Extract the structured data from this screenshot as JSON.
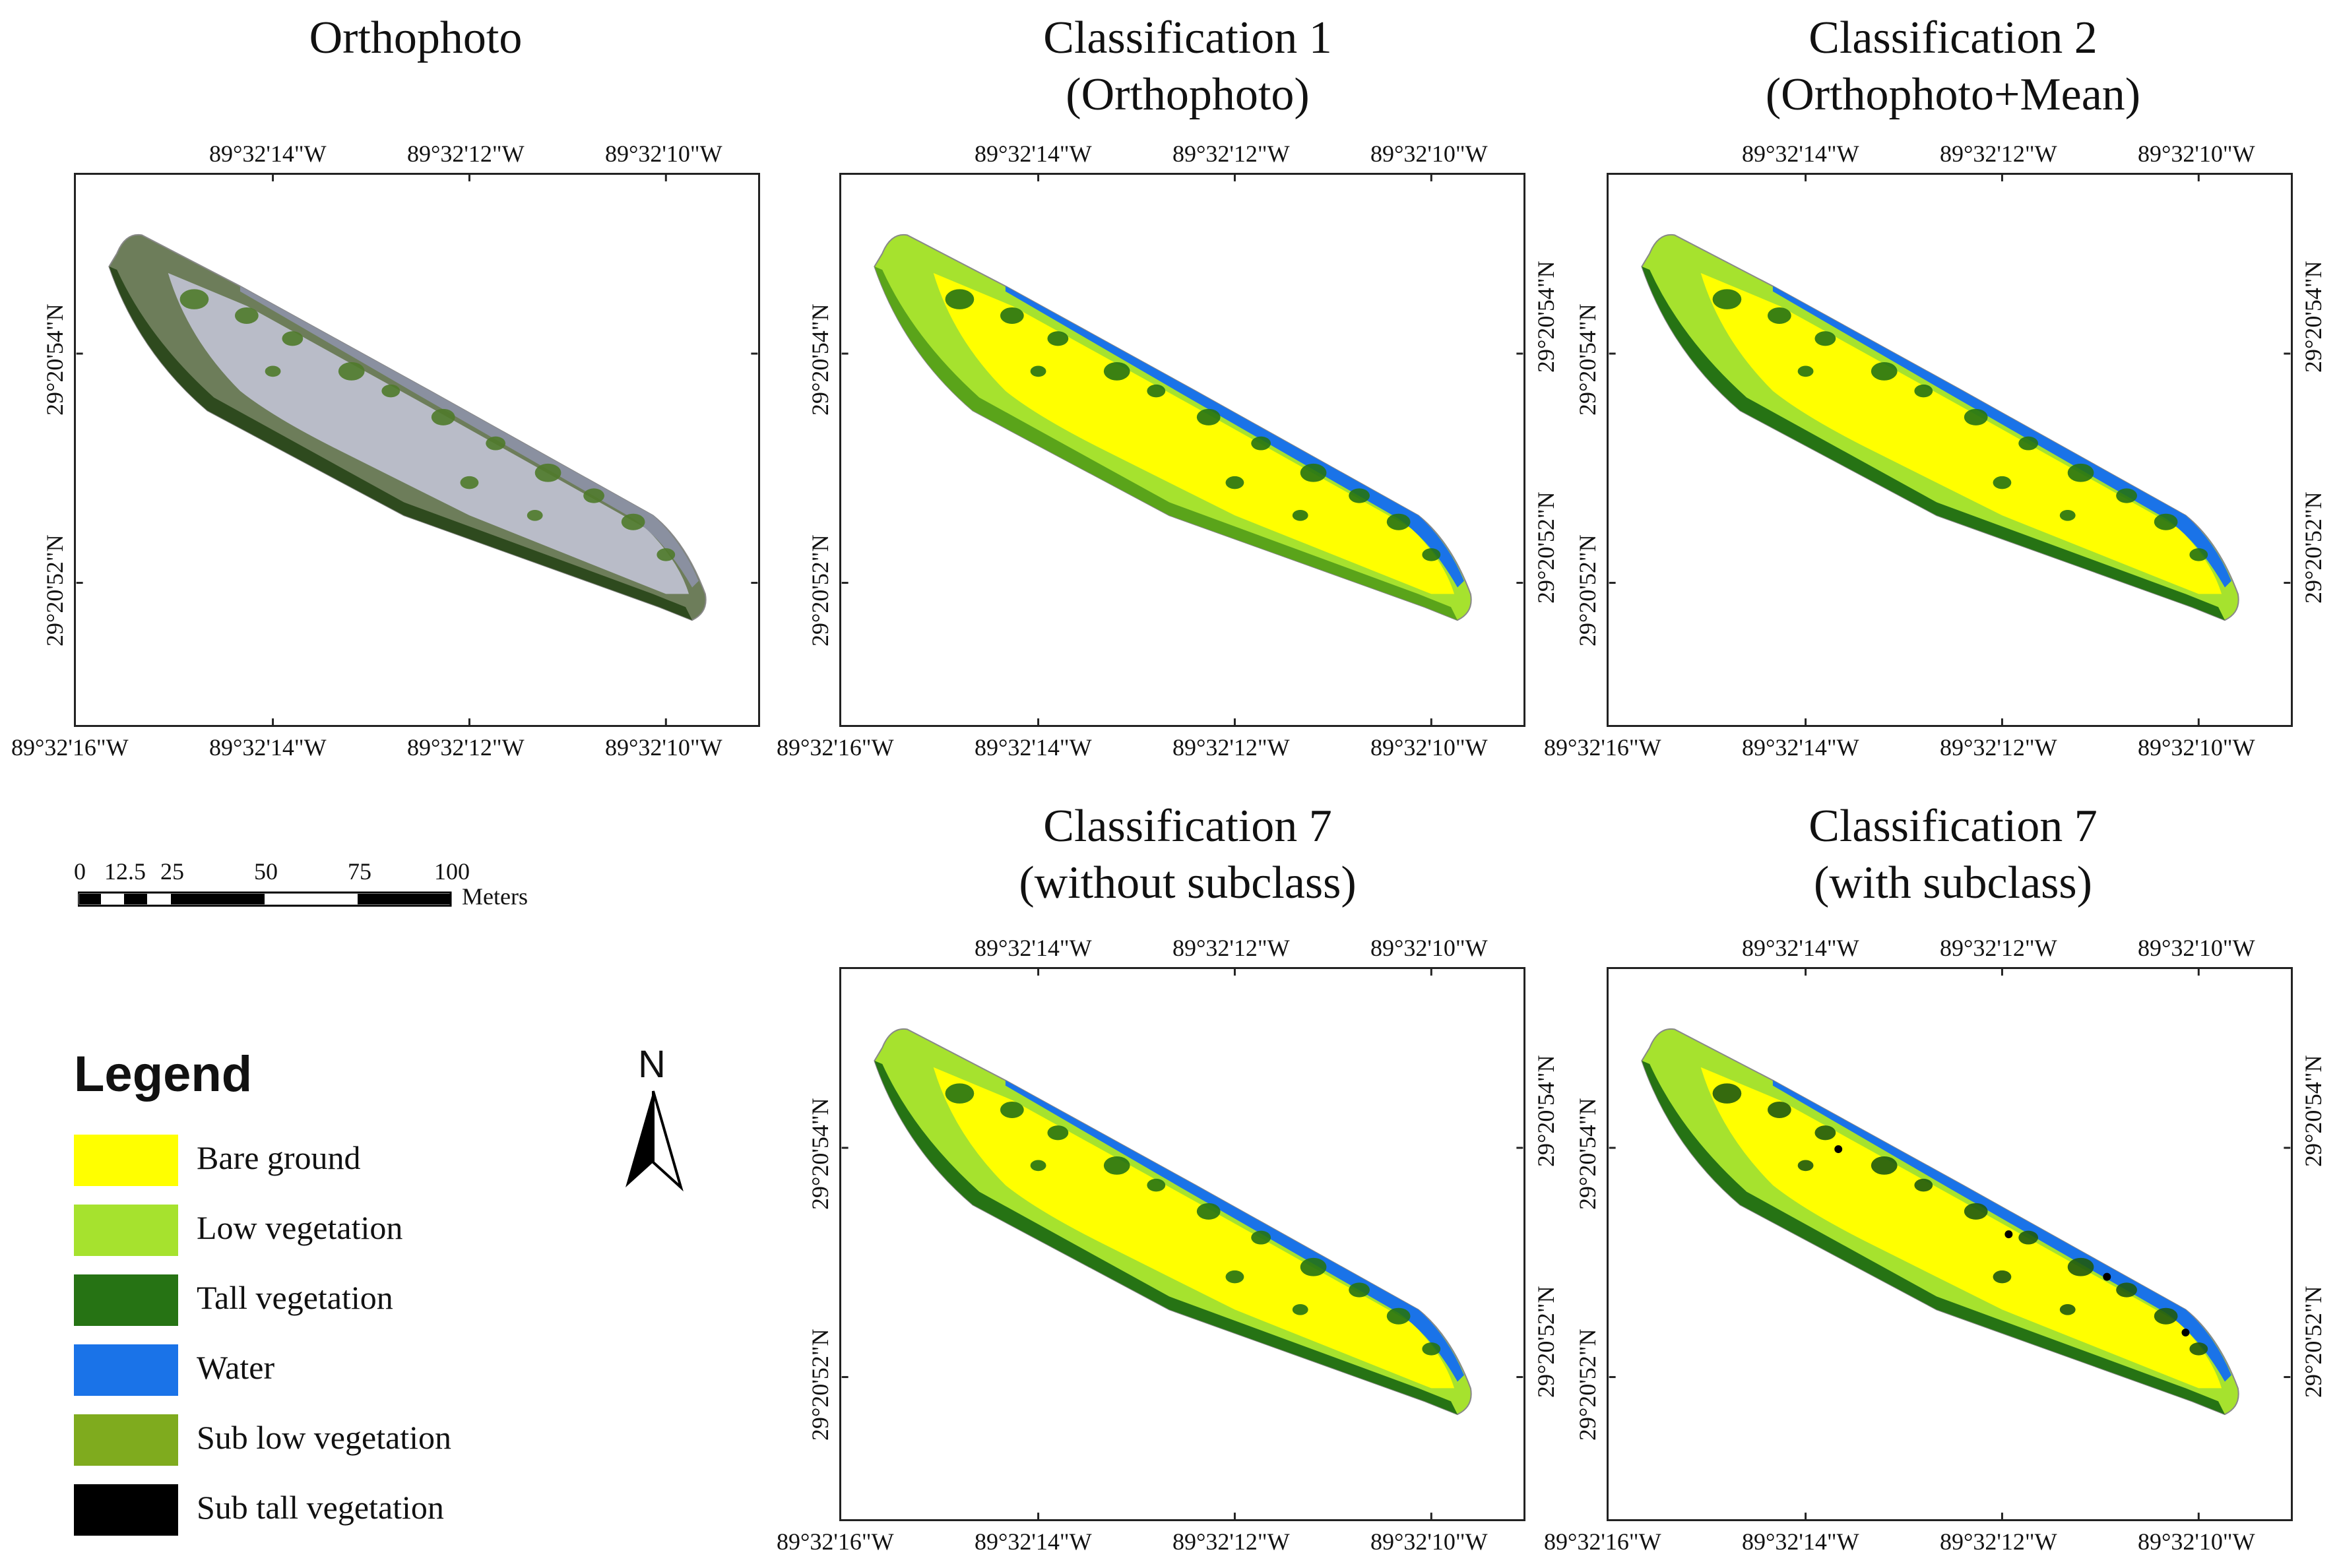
{
  "panels": [
    {
      "id": "p1",
      "title_line1": "Orthophoto",
      "title_line2": ""
    },
    {
      "id": "p2",
      "title_line1": "Classification 1",
      "title_line2": "(Orthophoto)"
    },
    {
      "id": "p3",
      "title_line1": "Classification 2",
      "title_line2": "(Orthophoto+Mean)"
    },
    {
      "id": "p4",
      "title_line1": "Classification 7",
      "title_line2": "(without subclass)"
    },
    {
      "id": "p5",
      "title_line1": "Classification 7",
      "title_line2": "(with subclass)"
    }
  ],
  "axis": {
    "top_ticks": [
      "89°32'14\"W",
      "89°32'12\"W",
      "89°32'10\"W"
    ],
    "bottom_ticks": [
      "89°32'16\"W",
      "89°32'14\"W",
      "89°32'12\"W",
      "89°32'10\"W"
    ],
    "lat_ticks": [
      "29°20'54\"N",
      "29°20'52\"N"
    ]
  },
  "scale_bar": {
    "ticks": [
      "0",
      "12.5",
      "25",
      "50",
      "75",
      "100"
    ],
    "unit": "Meters"
  },
  "north_arrow": {
    "label": "N"
  },
  "legend": {
    "title": "Legend",
    "items": [
      {
        "label": "Bare ground",
        "color": "#ffff00"
      },
      {
        "label": "Low vegetation",
        "color": "#a6e22e"
      },
      {
        "label": "Tall vegetation",
        "color": "#267314"
      },
      {
        "label": "Water",
        "color": "#1a73e8"
      },
      {
        "label": "Sub low vegetation",
        "color": "#7fab1e"
      },
      {
        "label": "Sub tall vegetation",
        "color": "#000000"
      }
    ]
  }
}
